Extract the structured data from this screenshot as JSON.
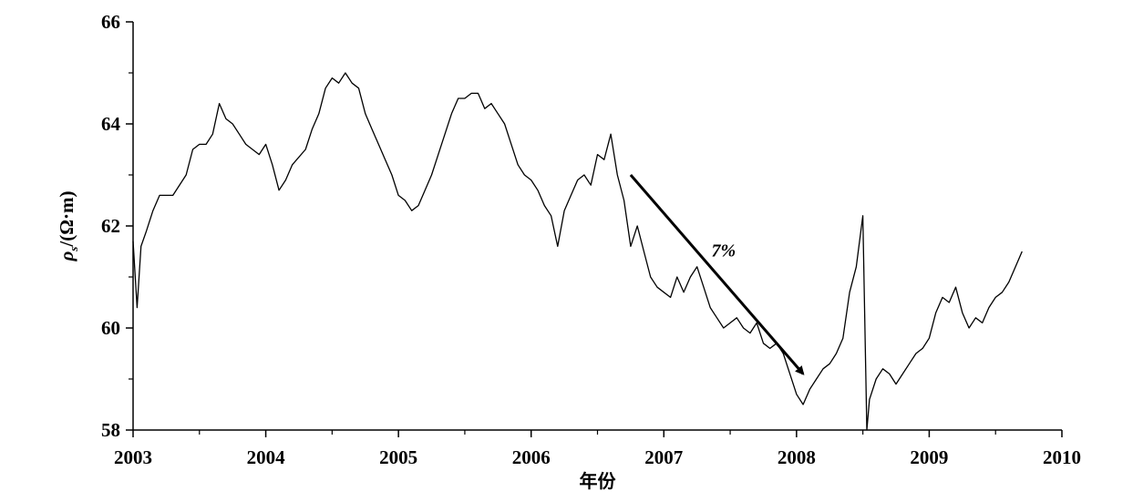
{
  "chart_data": {
    "type": "line",
    "title": "",
    "xlabel": "年份",
    "ylabel": "ρs/(Ω·m)",
    "ylabel_parts": {
      "symbol": "ρ",
      "subscript": "s",
      "unit": "/(Ω·m)"
    },
    "xlim": [
      2003,
      2010
    ],
    "ylim": [
      58,
      66
    ],
    "xticks": [
      2003,
      2004,
      2005,
      2006,
      2007,
      2008,
      2009,
      2010
    ],
    "yticks": [
      58,
      60,
      62,
      64,
      66
    ],
    "grid": false,
    "legend": "none",
    "colors": {
      "line": "#000000",
      "arrow": "#000000"
    },
    "series": [
      {
        "x": [
          2003.0,
          2003.03,
          2003.06,
          2003.1,
          2003.15,
          2003.2,
          2003.3,
          2003.4,
          2003.45,
          2003.5,
          2003.55,
          2003.6,
          2003.65,
          2003.7,
          2003.75,
          2003.8,
          2003.85,
          2003.9,
          2003.95,
          2004.0,
          2004.05,
          2004.1,
          2004.15,
          2004.2,
          2004.3,
          2004.35,
          2004.4,
          2004.45,
          2004.5,
          2004.55,
          2004.6,
          2004.65,
          2004.7,
          2004.75,
          2004.8,
          2004.85,
          2004.9,
          2004.95,
          2005.0,
          2005.05,
          2005.1,
          2005.15,
          2005.2,
          2005.25,
          2005.3,
          2005.35,
          2005.4,
          2005.45,
          2005.5,
          2005.55,
          2005.6,
          2005.65,
          2005.7,
          2005.75,
          2005.8,
          2005.85,
          2005.9,
          2005.95,
          2006.0,
          2006.05,
          2006.1,
          2006.15,
          2006.2,
          2006.25,
          2006.3,
          2006.35,
          2006.4,
          2006.45,
          2006.5,
          2006.55,
          2006.6,
          2006.65,
          2006.7,
          2006.75,
          2006.8,
          2006.85,
          2006.9,
          2006.95,
          2007.0,
          2007.05,
          2007.1,
          2007.15,
          2007.2,
          2007.25,
          2007.3,
          2007.35,
          2007.4,
          2007.45,
          2007.5,
          2007.55,
          2007.6,
          2007.65,
          2007.7,
          2007.75,
          2007.8,
          2007.85,
          2007.9,
          2007.95,
          2008.0,
          2008.05,
          2008.1,
          2008.15,
          2008.2,
          2008.25,
          2008.3,
          2008.35,
          2008.4,
          2008.45,
          2008.5,
          2008.53,
          2008.55,
          2008.6,
          2008.65,
          2008.7,
          2008.75,
          2008.8,
          2008.85,
          2008.9,
          2008.95,
          2009.0,
          2009.05,
          2009.1,
          2009.15,
          2009.2,
          2009.25,
          2009.3,
          2009.35,
          2009.4,
          2009.45,
          2009.5,
          2009.55,
          2009.6,
          2009.65,
          2009.7
        ],
        "y": [
          61.7,
          60.4,
          61.6,
          61.9,
          62.3,
          62.6,
          62.6,
          63.0,
          63.5,
          63.6,
          63.6,
          63.8,
          64.4,
          64.1,
          64.0,
          63.8,
          63.6,
          63.5,
          63.4,
          63.6,
          63.2,
          62.7,
          62.9,
          63.2,
          63.5,
          63.9,
          64.2,
          64.7,
          64.9,
          64.8,
          65.0,
          64.8,
          64.7,
          64.2,
          63.9,
          63.6,
          63.3,
          63.0,
          62.6,
          62.5,
          62.3,
          62.4,
          62.7,
          63.0,
          63.4,
          63.8,
          64.2,
          64.5,
          64.5,
          64.6,
          64.6,
          64.3,
          64.4,
          64.2,
          64.0,
          63.6,
          63.2,
          63.0,
          62.9,
          62.7,
          62.4,
          62.2,
          61.6,
          62.3,
          62.6,
          62.9,
          63.0,
          62.8,
          63.4,
          63.3,
          63.8,
          63.0,
          62.5,
          61.6,
          62.0,
          61.5,
          61.0,
          60.8,
          60.7,
          60.6,
          61.0,
          60.7,
          61.0,
          61.2,
          60.8,
          60.4,
          60.2,
          60.0,
          60.1,
          60.2,
          60.0,
          59.9,
          60.1,
          59.7,
          59.6,
          59.7,
          59.5,
          59.1,
          58.7,
          58.5,
          58.8,
          59.0,
          59.2,
          59.3,
          59.5,
          59.8,
          60.7,
          61.2,
          62.2,
          58.0,
          58.6,
          59.0,
          59.2,
          59.1,
          58.9,
          59.1,
          59.3,
          59.5,
          59.6,
          59.8,
          60.3,
          60.6,
          60.5,
          60.8,
          60.3,
          60.0,
          60.2,
          60.1,
          60.4,
          60.6,
          60.7,
          60.9,
          61.2,
          61.5
        ]
      }
    ],
    "annotations": [
      {
        "type": "arrow",
        "from": [
          2006.75,
          63.0
        ],
        "to": [
          2008.05,
          59.1
        ]
      },
      {
        "type": "text",
        "text": "7%",
        "x": 2007.45,
        "y": 61.4
      }
    ]
  }
}
